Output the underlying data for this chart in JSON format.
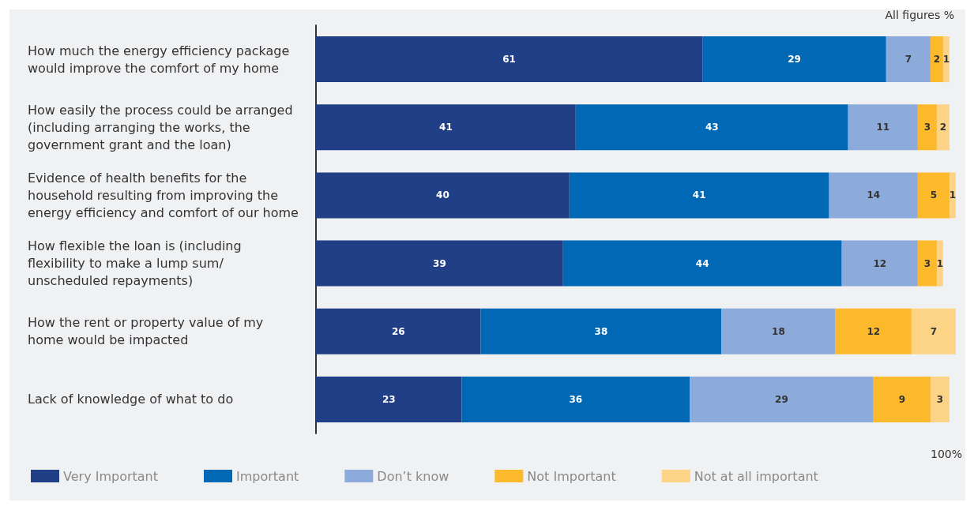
{
  "chart_data": {
    "type": "bar",
    "orientation": "horizontal",
    "stacked": true,
    "data_labels": true,
    "legend": "bottom left",
    "tick_labels": "y",
    "categories": [
      "How much the energy efficiency package would improve the comfort of my home",
      "How easily the process could be arranged (including arranging the works, the government grant and the loan)",
      "Evidence of health benefits for the household resulting from improving the energy efficiency and comfort of our home",
      "How flexible the loan is (including flexibility to make a lump sum/ unscheduled repayments)",
      "How the rent or property value of my home would be impacted",
      "Lack of knowledge of what to do"
    ],
    "xlim": [
      0,
      101
    ],
    "series": [
      {
        "name": "Very Important",
        "color": "#213f86",
        "values": [
          61,
          41,
          40,
          39,
          26,
          23
        ]
      },
      {
        "name": "Important",
        "color": "#0068b4",
        "values": [
          29,
          43,
          41,
          44,
          38,
          36
        ]
      },
      {
        "name": "Don’t know",
        "color": "#8dabda",
        "values": [
          7,
          11,
          14,
          12,
          18,
          29
        ]
      },
      {
        "name": "Not Important",
        "color": "#fbb92b",
        "values": [
          2,
          3,
          5,
          3,
          12,
          9
        ]
      },
      {
        "name": "Not at all important",
        "color": "#fdd385",
        "values": [
          1,
          2,
          1,
          1,
          7,
          3
        ]
      }
    ],
    "annotations": [
      "All figures %",
      "100%"
    ]
  }
}
